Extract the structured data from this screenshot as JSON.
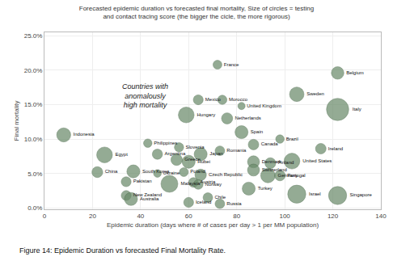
{
  "chart_data": {
    "type": "scatter",
    "title": "Forecasted epidemic duration vs forecasted final mortality, Size of circles = testing\nand contact tracing score (the bigger the cicle, the more rigorous)",
    "xlabel": "Epidemic duration (days where # of cases per day > 1 per MM population)",
    "ylabel": "Final mortality",
    "caption": "Figure 14: Epidemic Duration vs forecasted Final Mortality Rate.",
    "annotations": [
      {
        "text": "Countries with\nanomalously\nhigh mortality"
      }
    ],
    "xlim": [
      0,
      140
    ],
    "ylim": [
      -0.002,
      0.255
    ],
    "xticks": [
      0,
      20,
      40,
      60,
      80,
      100,
      120,
      140
    ],
    "yticks": [
      {
        "value": 0.0,
        "label": "0.0%"
      },
      {
        "value": 0.05,
        "label": "5.0%"
      },
      {
        "value": 0.1,
        "label": "10.0%"
      },
      {
        "value": 0.15,
        "label": "15.0%"
      },
      {
        "value": 0.2,
        "label": "20.0%"
      },
      {
        "value": 0.25,
        "label": "25.0%"
      }
    ],
    "grid": true,
    "color": "#6b8c6b",
    "labels": [
      "France",
      "Belgium",
      "Sweden",
      "Italy",
      "United Kingdom",
      "Morocco",
      "Mexico",
      "Hungary",
      "Netherlands",
      "Indonesia",
      "Spain",
      "Brazil",
      "Canada",
      "Romania",
      "Ireland",
      "Philippines",
      "Slovenia",
      "Japan",
      "Argentina",
      "Egypt",
      "Greece",
      "Hubei",
      "Denmark",
      "Finland",
      "United States",
      "China",
      "South Korea",
      "Ukraine",
      "Poland",
      "Czech Republic",
      "Switzerland",
      "Germany",
      "Portugal",
      "Pakistan",
      "Malaysia",
      "Austria",
      "Norway",
      "Turkey",
      "New Zealand",
      "Australia",
      "Iceland",
      "Chile",
      "Russia",
      "Israel",
      "Singapore"
    ],
    "x": [
      72,
      122,
      105,
      122,
      82,
      74,
      64,
      59,
      76,
      8,
      82,
      98,
      87,
      73,
      115,
      43,
      56,
      65,
      47,
      25,
      55,
      60,
      87,
      94,
      103,
      22,
      37,
      47,
      58,
      65,
      87,
      93,
      98,
      34,
      52,
      62,
      64,
      85,
      34,
      36,
      60,
      68,
      73,
      105,
      122
    ],
    "values": [
      0.208,
      0.196,
      0.165,
      0.143,
      0.148,
      0.157,
      0.157,
      0.135,
      0.13,
      0.106,
      0.11,
      0.1,
      0.092,
      0.083,
      0.086,
      0.094,
      0.088,
      0.078,
      0.078,
      0.077,
      0.07,
      0.067,
      0.067,
      0.065,
      0.068,
      0.052,
      0.053,
      0.05,
      0.052,
      0.048,
      0.055,
      0.047,
      0.047,
      0.038,
      0.035,
      0.037,
      0.034,
      0.028,
      0.018,
      0.013,
      0.008,
      0.015,
      0.006,
      0.02,
      0.018
    ],
    "sizes": [
      60,
      120,
      160,
      380,
      40,
      65,
      75,
      190,
      95,
      150,
      130,
      55,
      85,
      70,
      85,
      55,
      65,
      130,
      80,
      190,
      100,
      130,
      110,
      90,
      190,
      90,
      130,
      45,
      60,
      100,
      110,
      160,
      85,
      75,
      220,
      70,
      70,
      130,
      75,
      130,
      75,
      70,
      70,
      250,
      250
    ]
  }
}
